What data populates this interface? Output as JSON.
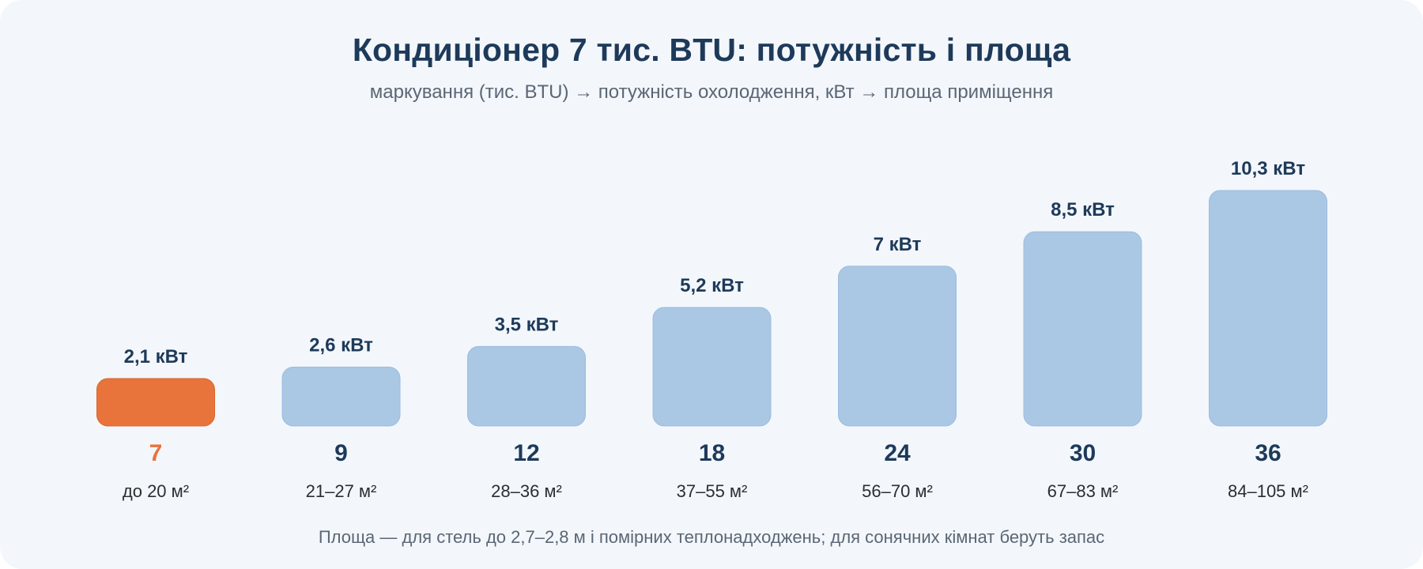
{
  "chart_data": {
    "type": "bar",
    "title": "Кондиціонер 7 тис. BTU: потужність і площа",
    "subtitle": "маркування (тис. BTU) → потужність охолодження, кВт → площа приміщення",
    "note": "Площа — для стель до 2,7–2,8 м і помірних теплонадходжень; для сонячних кімнат беруть запас",
    "categories": [
      "7",
      "9",
      "12",
      "18",
      "24",
      "30",
      "36"
    ],
    "values": [
      2.1,
      2.6,
      3.5,
      5.2,
      7,
      8.5,
      10.3
    ],
    "value_labels": [
      "2,1 кВт",
      "2,6 кВт",
      "3,5 кВт",
      "5,2 кВт",
      "7 кВт",
      "8,5 кВт",
      "10,3 кВт"
    ],
    "area_labels": [
      "до 20 м²",
      "21–27 м²",
      "28–36 м²",
      "37–55 м²",
      "56–70 м²",
      "67–83 м²",
      "84–105 м²"
    ],
    "highlight_index": 0,
    "colors": {
      "bar": "#aac7e4",
      "bar_stroke": "#9dbde0",
      "highlight": "#e8743b",
      "highlight_stroke": "#d9652c",
      "text_dark": "#1e3a5a",
      "text_muted": "#5b6675",
      "background": "#f3f7fb"
    },
    "xlabel": "",
    "ylabel": "",
    "grid": false,
    "legend": "none"
  }
}
